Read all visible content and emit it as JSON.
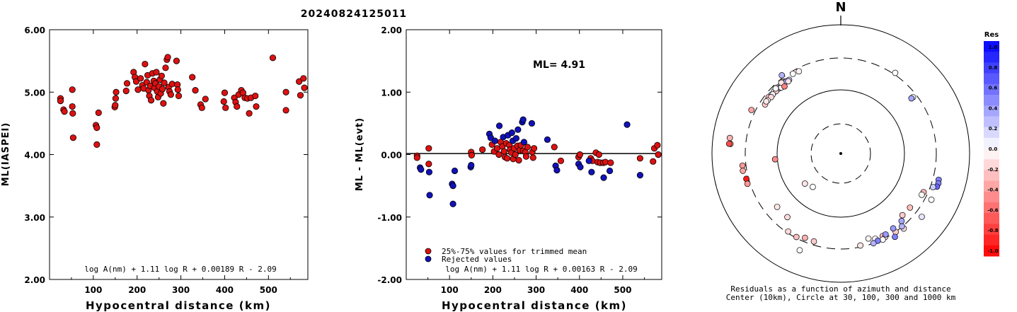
{
  "title": "20240824125011",
  "chart_data": [
    {
      "type": "scatter",
      "xlabel": "Hypocentral distance (km)",
      "ylabel": "ML(IASPEI)",
      "xlim": [
        0,
        590
      ],
      "ylim": [
        2.0,
        6.0
      ],
      "xticks": [
        100,
        200,
        300,
        400,
        500
      ],
      "xtick_labels": [
        "100",
        "200",
        "300",
        "400",
        "500"
      ],
      "yticks": [
        2.0,
        3.0,
        4.0,
        5.0,
        6.0
      ],
      "ytick_labels": [
        "2.00",
        "3.00",
        "4.00",
        "5.00",
        "6.00"
      ],
      "formula": "log A(nm) + 1.11 log R + 0.00189 R - 2.09",
      "marker_color": "#dd1111",
      "points": [
        [
          25,
          4.9
        ],
        [
          25,
          4.86
        ],
        [
          32,
          4.72
        ],
        [
          34,
          4.69
        ],
        [
          52,
          5.04
        ],
        [
          52,
          4.77
        ],
        [
          53,
          4.66
        ],
        [
          54,
          4.27
        ],
        [
          106,
          4.47
        ],
        [
          108,
          4.43
        ],
        [
          108,
          4.16
        ],
        [
          112,
          4.67
        ],
        [
          149,
          4.76
        ],
        [
          150,
          4.79
        ],
        [
          151,
          4.9
        ],
        [
          152,
          5.0
        ],
        [
          175,
          5.02
        ],
        [
          177,
          5.14
        ],
        [
          192,
          5.32
        ],
        [
          195,
          5.24
        ],
        [
          198,
          5.17
        ],
        [
          202,
          5.04
        ],
        [
          208,
          5.22
        ],
        [
          212,
          5.11
        ],
        [
          215,
          5.06
        ],
        [
          218,
          5.45
        ],
        [
          222,
          5.16
        ],
        [
          224,
          5.27
        ],
        [
          226,
          5.03
        ],
        [
          228,
          4.94
        ],
        [
          230,
          5.1
        ],
        [
          232,
          4.87
        ],
        [
          235,
          5.3
        ],
        [
          238,
          5.18
        ],
        [
          240,
          5.07
        ],
        [
          242,
          5.14
        ],
        [
          244,
          5.32
        ],
        [
          246,
          5.01
        ],
        [
          248,
          4.92
        ],
        [
          250,
          5.09
        ],
        [
          252,
          5.2
        ],
        [
          254,
          4.98
        ],
        [
          256,
          5.26
        ],
        [
          258,
          5.05
        ],
        [
          260,
          4.82
        ],
        [
          262,
          5.15
        ],
        [
          265,
          5.39
        ],
        [
          268,
          5.52
        ],
        [
          270,
          5.56
        ],
        [
          272,
          5.08
        ],
        [
          274,
          5.01
        ],
        [
          277,
          4.96
        ],
        [
          280,
          5.13
        ],
        [
          290,
          5.5
        ],
        [
          292,
          5.12
        ],
        [
          293,
          5.04
        ],
        [
          295,
          4.94
        ],
        [
          326,
          5.24
        ],
        [
          333,
          5.03
        ],
        [
          345,
          4.8
        ],
        [
          348,
          4.75
        ],
        [
          356,
          4.89
        ],
        [
          398,
          4.85
        ],
        [
          400,
          4.99
        ],
        [
          402,
          4.75
        ],
        [
          422,
          4.91
        ],
        [
          425,
          4.84
        ],
        [
          428,
          4.77
        ],
        [
          432,
          4.96
        ],
        [
          438,
          5.03
        ],
        [
          442,
          4.99
        ],
        [
          446,
          4.91
        ],
        [
          452,
          4.9
        ],
        [
          456,
          4.66
        ],
        [
          460,
          4.91
        ],
        [
          470,
          4.94
        ],
        [
          472,
          4.77
        ],
        [
          510,
          5.55
        ],
        [
          540,
          5.0
        ],
        [
          540,
          4.71
        ],
        [
          570,
          5.17
        ],
        [
          573,
          4.95
        ],
        [
          580,
          5.22
        ],
        [
          582,
          5.07
        ]
      ]
    },
    {
      "type": "scatter",
      "xlabel": "Hypocentral distance (km)",
      "ylabel": "ML - ML(evt)",
      "xlim": [
        0,
        590
      ],
      "ylim": [
        -2.0,
        2.0
      ],
      "xticks": [
        100,
        200,
        300,
        400,
        500
      ],
      "xtick_labels": [
        "100",
        "200",
        "300",
        "400",
        "500"
      ],
      "yticks": [
        -2.0,
        -1.0,
        0.0,
        1.0,
        2.0
      ],
      "ytick_labels": [
        "-2.00",
        "-1.00",
        "0.00",
        "1.00",
        "2.00"
      ],
      "annotation": "ML= 4.91",
      "formula": "log A(nm) + 1.11 log R + 0.00163 R - 2.09",
      "legend_position": "bottom-left",
      "series": [
        {
          "name": "25%-75% values for trimmed mean",
          "color": "#dd1111",
          "points": [
            [
              25,
              -0.02
            ],
            [
              25,
              -0.05
            ],
            [
              52,
              0.1
            ],
            [
              52,
              -0.15
            ],
            [
              150,
              0.04
            ],
            [
              151,
              -0.01
            ],
            [
              176,
              0.08
            ],
            [
              198,
              0.16
            ],
            [
              203,
              0.05
            ],
            [
              210,
              0.1
            ],
            [
              214,
              0.0
            ],
            [
              218,
              0.2
            ],
            [
              222,
              0.13
            ],
            [
              226,
              0.05
            ],
            [
              228,
              -0.04
            ],
            [
              231,
              0.18
            ],
            [
              233,
              -0.06
            ],
            [
              238,
              0.15
            ],
            [
              240,
              0.08
            ],
            [
              243,
              0.03
            ],
            [
              247,
              -0.07
            ],
            [
              249,
              0.1
            ],
            [
              252,
              0.0
            ],
            [
              257,
              0.14
            ],
            [
              260,
              -0.09
            ],
            [
              262,
              0.07
            ],
            [
              265,
              0.15
            ],
            [
              270,
              0.06
            ],
            [
              275,
              0.04
            ],
            [
              277,
              -0.03
            ],
            [
              280,
              0.12
            ],
            [
              291,
              0.04
            ],
            [
              293,
              -0.05
            ],
            [
              295,
              0.1
            ],
            [
              342,
              0.12
            ],
            [
              357,
              -0.1
            ],
            [
              398,
              -0.04
            ],
            [
              401,
              0.0
            ],
            [
              426,
              -0.06
            ],
            [
              430,
              -0.1
            ],
            [
              438,
              0.03
            ],
            [
              442,
              -0.12
            ],
            [
              445,
              0.0
            ],
            [
              448,
              -0.13
            ],
            [
              455,
              -0.13
            ],
            [
              460,
              -0.12
            ],
            [
              472,
              -0.13
            ],
            [
              540,
              -0.06
            ],
            [
              570,
              -0.11
            ],
            [
              573,
              0.1
            ],
            [
              580,
              0.15
            ],
            [
              582,
              0.0
            ]
          ]
        },
        {
          "name": "Rejected values",
          "color": "#1111bb",
          "points": [
            [
              32,
              -0.21
            ],
            [
              34,
              -0.24
            ],
            [
              53,
              -0.28
            ],
            [
              54,
              -0.65
            ],
            [
              106,
              -0.47
            ],
            [
              108,
              -0.5
            ],
            [
              108,
              -0.79
            ],
            [
              112,
              -0.26
            ],
            [
              149,
              -0.2
            ],
            [
              150,
              -0.17
            ],
            [
              192,
              0.33
            ],
            [
              195,
              0.27
            ],
            [
              205,
              0.22
            ],
            [
              215,
              0.46
            ],
            [
              224,
              0.28
            ],
            [
              235,
              0.31
            ],
            [
              244,
              0.35
            ],
            [
              246,
              0.22
            ],
            [
              254,
              0.26
            ],
            [
              258,
              0.4
            ],
            [
              268,
              0.52
            ],
            [
              270,
              0.56
            ],
            [
              272,
              0.2
            ],
            [
              290,
              0.5
            ],
            [
              326,
              0.24
            ],
            [
              345,
              -0.18
            ],
            [
              348,
              -0.25
            ],
            [
              398,
              -0.15
            ],
            [
              402,
              -0.2
            ],
            [
              422,
              -0.1
            ],
            [
              428,
              -0.28
            ],
            [
              456,
              -0.37
            ],
            [
              470,
              -0.26
            ],
            [
              510,
              0.48
            ],
            [
              540,
              -0.33
            ]
          ]
        }
      ]
    },
    {
      "type": "scatter",
      "subtype": "polar",
      "north_label": "N",
      "caption_line1": "Residuals as a function of azimuth and distance",
      "caption_line2": "Center (10km), Circle at 30, 100, 300 and 1000 km",
      "colorbar_title": "Res",
      "colorbar_ticks": [
        "1.0",
        "0.8",
        "0.6",
        "0.4",
        "0.2",
        "0.0",
        "-0.2",
        "-0.4",
        "-0.6",
        "-0.8",
        "-1.0"
      ],
      "colorbar_range": [
        -1.0,
        1.0
      ],
      "ring_distances_km": [
        30,
        100,
        300,
        1000
      ],
      "points": [
        [
          315,
          250,
          0.0
        ],
        [
          318,
          255,
          0.15
        ],
        [
          320,
          245,
          0.1
        ],
        [
          322,
          260,
          0.3
        ],
        [
          325,
          248,
          0.25
        ],
        [
          312,
          252,
          -0.1
        ],
        [
          316,
          262,
          -0.05
        ],
        [
          319,
          240,
          0.05
        ],
        [
          321,
          265,
          -0.15
        ],
        [
          317,
          244,
          0.2
        ],
        [
          313,
          258,
          0.0
        ],
        [
          323,
          251,
          0.35
        ],
        [
          314,
          247,
          -0.2
        ],
        [
          310,
          256,
          0.1
        ],
        [
          318,
          238,
          0.0
        ],
        [
          324,
          242,
          -0.1
        ],
        [
          311,
          249,
          0.05
        ],
        [
          315,
          266,
          0.0
        ],
        [
          320,
          270,
          -0.1
        ],
        [
          329,
          275,
          0.0
        ],
        [
          333,
          268,
          -0.05
        ],
        [
          308,
          262,
          -0.25
        ],
        [
          309,
          245,
          -0.15
        ],
        [
          306,
          252,
          0.0
        ],
        [
          52,
          262,
          0.0
        ],
        [
          52,
          245,
          0.35
        ],
        [
          296,
          345,
          -0.35
        ],
        [
          265,
          108,
          -0.45
        ],
        [
          220,
          49,
          0.0
        ],
        [
          230,
          55,
          -0.1
        ],
        [
          128,
          230,
          -0.25
        ],
        [
          135,
          225,
          -0.2
        ],
        [
          105,
          370,
          0.5
        ],
        [
          107,
          380,
          0.5
        ],
        [
          109,
          375,
          0.6
        ],
        [
          153,
          270,
          -0.25
        ],
        [
          158,
          265,
          0.0
        ],
        [
          162,
          243,
          -0.05
        ],
        [
          168,
          285,
          -0.1
        ],
        [
          152,
          290,
          -0.15
        ],
        [
          145,
          302,
          -0.2
        ],
        [
          140,
          327,
          -0.1
        ],
        [
          197,
          265,
          -0.2
        ],
        [
          203,
          262,
          -0.3
        ],
        [
          208,
          290,
          -0.25
        ],
        [
          214,
          285,
          -0.15
        ],
        [
          203,
          425,
          0.0
        ],
        [
          140,
          295,
          0.3
        ],
        [
          147,
          345,
          0.5
        ],
        [
          117,
          375,
          0.0
        ],
        [
          138,
          255,
          0.35
        ],
        [
          145,
          260,
          0.4
        ],
        [
          128,
          390,
          0.1
        ],
        [
          151,
          270,
          0.4
        ],
        [
          154,
          303,
          0.0
        ],
        [
          157,
          292,
          0.5
        ],
        [
          160,
          300,
          0.3
        ],
        [
          275,
          520,
          -0.4
        ],
        [
          278,
          545,
          -0.3
        ],
        [
          275,
          545,
          -0.7
        ],
        [
          263,
          340,
          -0.4
        ],
        [
          260,
          345,
          -0.35
        ],
        [
          110,
          330,
          0.2
        ],
        [
          255,
          325,
          -0.9
        ],
        [
          220,
          195,
          -0.15
        ],
        [
          230,
          195,
          -0.1
        ],
        [
          252,
          329,
          -0.4
        ],
        [
          323,
          328,
          0.3
        ],
        [
          34,
          320,
          0.0
        ],
        [
          115,
          260,
          -0.3
        ],
        [
          117,
          255,
          0.0
        ],
        [
          320,
          228,
          -0.5
        ],
        [
          303,
          250,
          -0.2
        ],
        [
          305,
          256,
          -0.1
        ]
      ]
    }
  ]
}
